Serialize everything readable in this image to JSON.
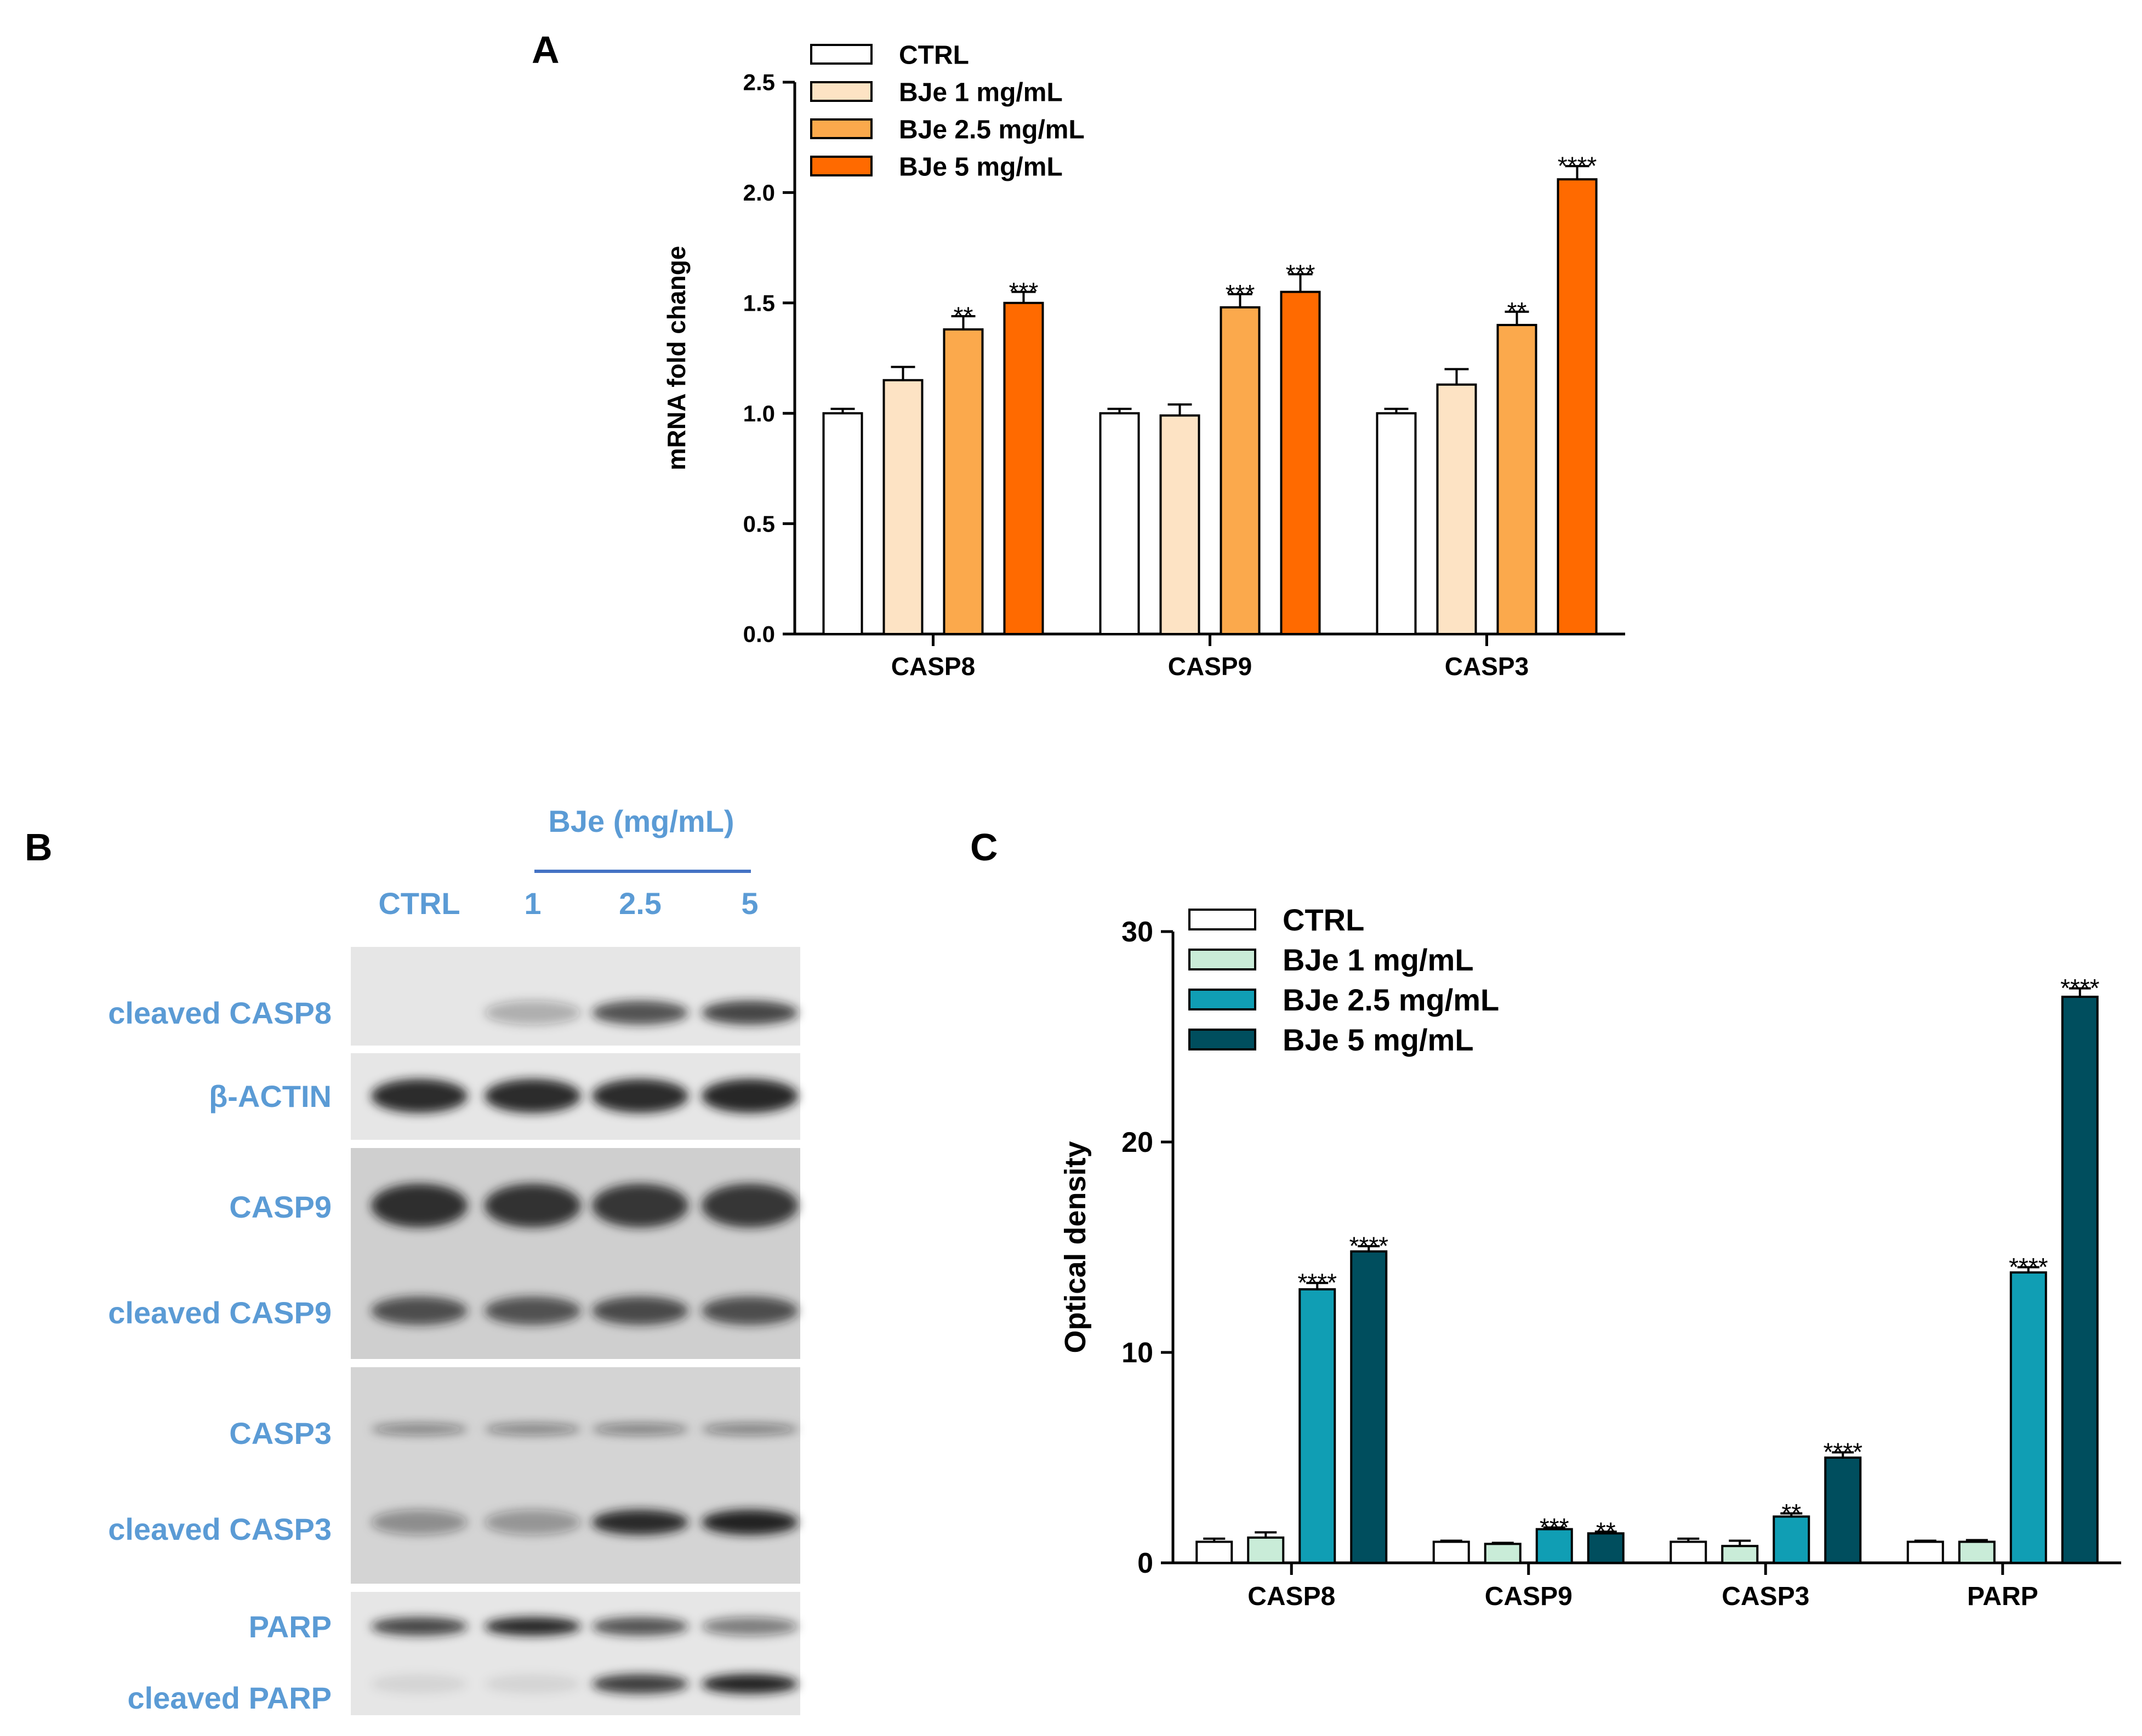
{
  "panels": {
    "a": "A",
    "b": "B",
    "c": "C"
  },
  "colors": {
    "blot_label": "#5b9bd5",
    "bracket": "#4472c4",
    "axis": "#000000",
    "bar_stroke": "#000000"
  },
  "blot": {
    "header": "BJe (mg/mL)",
    "lanes": [
      "CTRL",
      "1",
      "2.5",
      "5"
    ],
    "rows": [
      {
        "label": "cleaved CASP8",
        "intensities": [
          0.0,
          0.28,
          0.72,
          0.78
        ]
      },
      {
        "label": "β-ACTIN",
        "intensities": [
          0.9,
          0.9,
          0.9,
          0.92
        ]
      },
      {
        "label": "CASP9",
        "intensities": [
          0.88,
          0.86,
          0.84,
          0.84
        ]
      },
      {
        "label": "cleaved CASP9",
        "intensities": [
          0.72,
          0.7,
          0.74,
          0.72
        ]
      },
      {
        "label": "CASP3",
        "intensities": [
          0.42,
          0.42,
          0.44,
          0.44
        ]
      },
      {
        "label": "cleaved CASP3",
        "intensities": [
          0.38,
          0.34,
          0.9,
          0.94
        ]
      },
      {
        "label": "PARP",
        "intensities": [
          0.78,
          0.92,
          0.72,
          0.5
        ]
      },
      {
        "label": "cleaved PARP",
        "intensities": [
          0.08,
          0.08,
          0.82,
          0.94
        ]
      }
    ]
  },
  "chart_data": [
    {
      "type": "bar",
      "panel": "A",
      "title": "",
      "xlabel": "",
      "ylabel": "mRNA fold change",
      "ylim": [
        0,
        2.5
      ],
      "yticks": [
        "0.0",
        "0.5",
        "1.0",
        "1.5",
        "2.0",
        "2.5"
      ],
      "categories": [
        "CASP8",
        "CASP9",
        "CASP3"
      ],
      "legend_position": "top-left",
      "series": [
        {
          "name": "CTRL",
          "color": "#ffffff",
          "values": [
            1.0,
            1.0,
            1.0
          ],
          "errors": [
            0.02,
            0.02,
            0.02
          ],
          "sig": [
            "",
            "",
            ""
          ]
        },
        {
          "name": "BJe 1 mg/mL",
          "color": "#fde3c4",
          "values": [
            1.15,
            0.99,
            1.13
          ],
          "errors": [
            0.06,
            0.05,
            0.07
          ],
          "sig": [
            "",
            "",
            ""
          ]
        },
        {
          "name": "BJe 2.5 mg/mL",
          "color": "#fba94c",
          "values": [
            1.38,
            1.48,
            1.4
          ],
          "errors": [
            0.06,
            0.06,
            0.06
          ],
          "sig": [
            "**",
            "***",
            "**"
          ]
        },
        {
          "name": "BJe 5 mg/mL",
          "color": "#ff6a00",
          "values": [
            1.5,
            1.55,
            2.06
          ],
          "errors": [
            0.05,
            0.08,
            0.06
          ],
          "sig": [
            "***",
            "***",
            "****"
          ]
        }
      ]
    },
    {
      "type": "bar",
      "panel": "C",
      "title": "",
      "xlabel": "",
      "ylabel": "Optical density",
      "ylim": [
        0,
        30
      ],
      "yticks": [
        "0",
        "10",
        "20",
        "30"
      ],
      "categories": [
        "CASP8",
        "CASP9",
        "CASP3",
        "PARP"
      ],
      "legend_position": "top-left",
      "series": [
        {
          "name": "CTRL",
          "color": "#ffffff",
          "values": [
            1.0,
            1.0,
            1.0,
            1.0
          ],
          "errors": [
            0.15,
            0.05,
            0.15,
            0.05
          ],
          "sig": [
            "",
            "",
            "",
            ""
          ]
        },
        {
          "name": "BJe 1 mg/mL",
          "color": "#c9ecd8",
          "values": [
            1.2,
            0.9,
            0.8,
            1.0
          ],
          "errors": [
            0.25,
            0.05,
            0.25,
            0.08
          ],
          "sig": [
            "",
            "",
            "",
            ""
          ]
        },
        {
          "name": "BJe 2.5 mg/mL",
          "color": "#109eb4",
          "values": [
            13.0,
            1.6,
            2.2,
            13.8
          ],
          "errors": [
            0.3,
            0.08,
            0.15,
            0.25
          ],
          "sig": [
            "****",
            "***",
            "**",
            "****"
          ]
        },
        {
          "name": "BJe 5 mg/mL",
          "color": "#004e5e",
          "values": [
            14.8,
            1.4,
            5.0,
            26.9
          ],
          "errors": [
            0.25,
            0.08,
            0.25,
            0.4
          ],
          "sig": [
            "****",
            "**",
            "****",
            "****"
          ]
        }
      ]
    }
  ]
}
